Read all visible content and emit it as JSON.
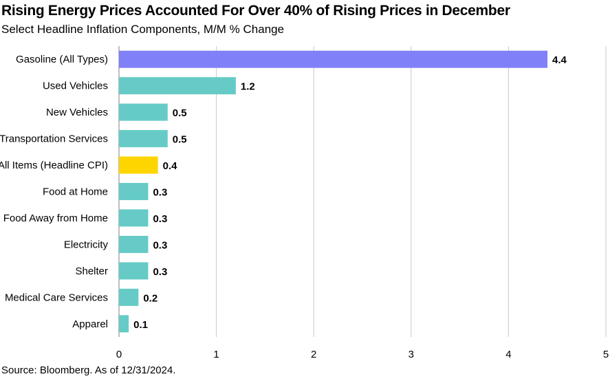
{
  "chart_data": {
    "type": "bar",
    "orientation": "horizontal",
    "title": "Rising Energy Prices Accounted For Over 40% of Rising Prices in December",
    "subtitle": "Select Headline Inflation Components, M/M % Change",
    "source": "Source: Bloomberg. As of 12/31/2024.",
    "categories": [
      "Gasoline (All Types)",
      "Used Vehicles",
      "New Vehicles",
      "Transportation Services",
      "All Items (Headline CPI)",
      "Food at Home",
      "Food Away from Home",
      "Electricity",
      "Shelter",
      "Medical Care Services",
      "Apparel"
    ],
    "values": [
      4.4,
      1.2,
      0.5,
      0.5,
      0.4,
      0.3,
      0.3,
      0.3,
      0.3,
      0.2,
      0.1
    ],
    "value_labels": [
      "4.4",
      "1.2",
      "0.5",
      "0.5",
      "0.4",
      "0.3",
      "0.3",
      "0.3",
      "0.3",
      "0.2",
      "0.1"
    ],
    "bar_colors": [
      "#8080f8",
      "#66cbc6",
      "#66cbc6",
      "#66cbc6",
      "#ffd500",
      "#66cbc6",
      "#66cbc6",
      "#66cbc6",
      "#66cbc6",
      "#66cbc6",
      "#66cbc6"
    ],
    "xlim": [
      0,
      5
    ],
    "xticks": [
      0,
      1,
      2,
      3,
      4,
      5
    ],
    "xtick_labels": [
      "0",
      "1",
      "2",
      "3",
      "4",
      "5"
    ],
    "xlabel": "",
    "ylabel": "",
    "grid": "vertical",
    "legend": "none"
  },
  "colors": {
    "gridline": "#c8c8c8",
    "axis": "#7f7f7f"
  }
}
